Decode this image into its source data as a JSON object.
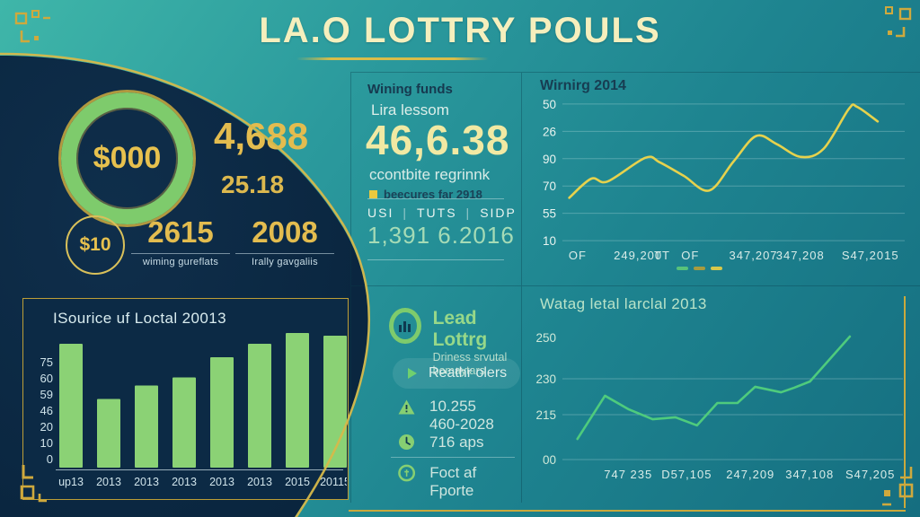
{
  "header": {
    "title": "LA.O LOTTRY POULS"
  },
  "left_panel": {
    "donut_value": "$000",
    "big_value": "4,688",
    "sub_value": "25.18",
    "coin_value": "$10",
    "stats": [
      {
        "value": "2615",
        "label": "wiming gureflats"
      },
      {
        "value": "2008",
        "label": "Irally gavgaliis"
      }
    ]
  },
  "funds_panel": {
    "heading": "Wining funds",
    "subheading": "Lira lessom",
    "amount": "46,6.38",
    "caption": "ccontbite regrinnk",
    "bullet_note": "beecures far 2918",
    "tabs": [
      "USI",
      "TUTS",
      "SIDP"
    ],
    "figure": "1,391 6.2016"
  },
  "info_panel": {
    "title": "Lead Lottrg",
    "subtitle_line1": "Driness srvutal",
    "subtitle_line2": "bomaytars",
    "pill_label": "Reathr olers",
    "warning_value": "10.255",
    "warning_subvalue": "460-2028",
    "clock_value": "716 aps",
    "coin_value": "Foct af Fporte"
  },
  "chart_data": [
    {
      "id": "source_bar",
      "type": "bar",
      "title": "ISourice uf Loctal 20013",
      "categories": [
        "up13",
        "2013",
        "2013",
        "2013",
        "2013",
        "2013",
        "2015",
        "20115"
      ],
      "values": [
        92,
        51,
        61,
        67,
        82,
        92,
        100,
        98
      ],
      "y_ticks": [
        "75",
        "60",
        "59",
        "46",
        "20",
        "10",
        "0"
      ],
      "ylim": [
        0,
        105
      ],
      "bar_color": "#8bd275",
      "tick_color": "#cfe3ea",
      "grid": false,
      "legend_position": "none"
    },
    {
      "id": "winning_line",
      "type": "line",
      "smooth": true,
      "title": "Wirnirg 2014",
      "line_color": "#e6d24d",
      "tick_color": "#e8f3ef",
      "y_ticks": [
        {
          "text": "50",
          "fy": 0.03,
          "grid": true
        },
        {
          "text": "26",
          "fy": 0.218,
          "grid": true
        },
        {
          "text": "90",
          "fy": 0.406,
          "grid": true
        },
        {
          "text": "70",
          "fy": 0.594,
          "grid": true
        },
        {
          "text": "55",
          "fy": 0.782,
          "grid": true
        },
        {
          "text": "10",
          "fy": 0.97,
          "grid": true
        }
      ],
      "x_labels": [
        {
          "text": "OF",
          "fx": 0.018
        },
        {
          "text": "249,200",
          "fx": 0.15
        },
        {
          "text": "TT",
          "fx": 0.268
        },
        {
          "text": "OF",
          "fx": 0.347
        },
        {
          "text": "347,207",
          "fx": 0.487
        },
        {
          "text": "347,208",
          "fx": 0.624
        },
        {
          "text": "S47,2015",
          "fx": 0.816
        }
      ],
      "points": [
        [
          0.02,
          0.675
        ],
        [
          0.084,
          0.544
        ],
        [
          0.132,
          0.563
        ],
        [
          0.242,
          0.4
        ],
        [
          0.284,
          0.431
        ],
        [
          0.355,
          0.525
        ],
        [
          0.429,
          0.625
        ],
        [
          0.5,
          0.425
        ],
        [
          0.566,
          0.25
        ],
        [
          0.626,
          0.306
        ],
        [
          0.697,
          0.394
        ],
        [
          0.763,
          0.338
        ],
        [
          0.837,
          0.063
        ],
        [
          0.861,
          0.05
        ],
        [
          0.921,
          0.15
        ]
      ],
      "legend_dashes": [
        "#57c27a",
        "#a89b3e",
        "#d8c84a"
      ],
      "legend_position": "bottom"
    },
    {
      "id": "total_line",
      "type": "line",
      "smooth": false,
      "title": "Watag letal larclal 2013",
      "line_color": "#4ecb7d",
      "tick_color": "#cfe8d8",
      "y_ticks": [
        {
          "text": "250",
          "fy": 0.137,
          "grid": false
        },
        {
          "text": "230",
          "fy": 0.422,
          "grid": true
        },
        {
          "text": "215",
          "fy": 0.671,
          "grid": true
        },
        {
          "text": "00",
          "fy": 0.981,
          "grid": true
        }
      ],
      "x_labels": [
        {
          "text": "747 235",
          "fx": 0.122
        },
        {
          "text": "D57,105",
          "fx": 0.291
        },
        {
          "text": "247,209",
          "fx": 0.481
        },
        {
          "text": "347,108",
          "fx": 0.655
        },
        {
          "text": "S47,205",
          "fx": 0.831
        }
      ],
      "points": [
        [
          0.044,
          0.839
        ],
        [
          0.125,
          0.54
        ],
        [
          0.195,
          0.634
        ],
        [
          0.265,
          0.702
        ],
        [
          0.332,
          0.689
        ],
        [
          0.395,
          0.745
        ],
        [
          0.455,
          0.59
        ],
        [
          0.514,
          0.59
        ],
        [
          0.566,
          0.478
        ],
        [
          0.642,
          0.516
        ],
        [
          0.681,
          0.484
        ],
        [
          0.727,
          0.441
        ],
        [
          0.844,
          0.13
        ]
      ],
      "legend_position": "none"
    }
  ],
  "colors": {
    "accent_gold": "#caa93c",
    "cream_title": "#f5efbd",
    "dark_navy": "#0c2a45",
    "bar_green": "#8bd275",
    "line_yellow": "#e6d24d",
    "line_green": "#4ecb7d"
  }
}
